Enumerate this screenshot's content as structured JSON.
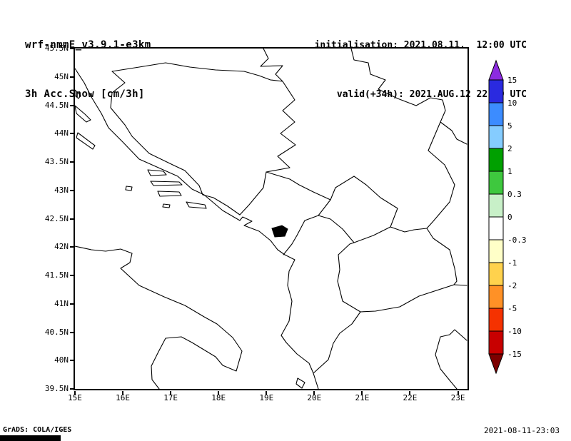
{
  "header": {
    "model": "wrf-nmmE_v3.9.1-e3km",
    "field": "3h Acc.Snow [cm/3h]",
    "init": "initialisation: 2021.08.11.  12:00 UTC",
    "valid": "valid(+34h): 2021.AUG.12 22:00 UTC"
  },
  "footer": {
    "credit": "GrADS: COLA/IGES",
    "created": "2021-08-11-23:03"
  },
  "chart_data": {
    "type": "map",
    "title": "3h Acc.Snow [cm/3h]",
    "model": "wrf-nmmE_v3.9.1-e3km",
    "initialisation": "2021.08.11. 12:00 UTC",
    "valid": "2021.AUG.12 22:00 UTC (+34h)",
    "region": {
      "lon_min": "15E",
      "lon_max": "23.2E",
      "lat_min": "39.5N",
      "lat_max": "45.5N"
    },
    "x_axis": {
      "ticks": [
        "15E",
        "16E",
        "17E",
        "18E",
        "19E",
        "20E",
        "21E",
        "22E",
        "23E"
      ]
    },
    "y_axis": {
      "ticks": [
        "45.5N",
        "45N",
        "44.5N",
        "44N",
        "43.5N",
        "43N",
        "42.5N",
        "42N",
        "41.5N",
        "41N",
        "40.5N",
        "40N",
        "39.5N"
      ]
    },
    "field_values": "no nonzero snow-accumulation shading visible anywhere in the domain (map outlines only)",
    "colorbar": {
      "units": "cm/3h",
      "levels": [
        "15",
        "10",
        "5",
        "2",
        "1",
        "0.3",
        "0",
        "-0.3",
        "-1",
        "-2",
        "-5",
        "-10",
        "-15"
      ],
      "segment_colors": [
        "#2a2ae0",
        "#3c8cff",
        "#85ccff",
        "#00a000",
        "#3ec83e",
        "#c8f0c8",
        "#ffffff",
        "#ffffc8",
        "#ffd24d",
        "#ff9126",
        "#f53200",
        "#c80000"
      ],
      "arrow_top_color": "#8c2be0",
      "arrow_bottom_color": "#7d0000"
    }
  }
}
